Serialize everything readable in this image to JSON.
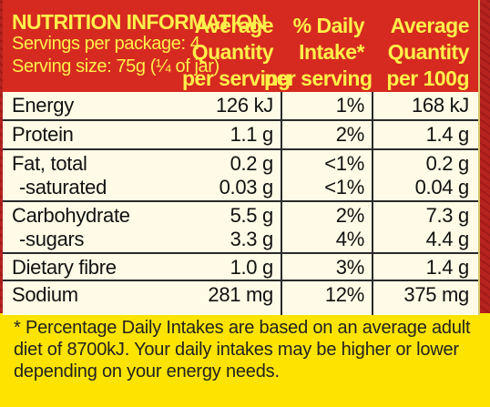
{
  "header": {
    "title": "NUTRITION INFORMATION",
    "servings": "Servings per package: 4",
    "serving_size": "Serving size: 75g (¼ of jar)",
    "col1": [
      "Average",
      "Quantity",
      "per serving"
    ],
    "col2": [
      "% Daily",
      "Intake*",
      "per serving"
    ],
    "col3": [
      "Average",
      "Quantity",
      "per 100g"
    ]
  },
  "rows": [
    {
      "lines": [
        {
          "name": "Energy",
          "per_serving": "126 kJ",
          "daily_intake": "1%",
          "per_100g": "168 kJ"
        }
      ]
    },
    {
      "lines": [
        {
          "name": "Protein",
          "per_serving": "1.1 g",
          "daily_intake": "2%",
          "per_100g": "1.4 g"
        }
      ]
    },
    {
      "lines": [
        {
          "name": "Fat, total",
          "per_serving": "0.2 g",
          "daily_intake": "<1%",
          "per_100g": "0.2 g"
        },
        {
          "name": "-saturated",
          "per_serving": "0.03 g",
          "daily_intake": "<1%",
          "per_100g": "0.04 g"
        }
      ]
    },
    {
      "lines": [
        {
          "name": "Carbohydrate",
          "per_serving": "5.5 g",
          "daily_intake": "2%",
          "per_100g": "7.3 g"
        },
        {
          "name": "-sugars",
          "per_serving": "3.3 g",
          "daily_intake": "4%",
          "per_100g": "4.4 g"
        }
      ]
    },
    {
      "lines": [
        {
          "name": "Dietary fibre",
          "per_serving": "1.0 g",
          "daily_intake": "3%",
          "per_100g": "1.4 g"
        }
      ]
    },
    {
      "lines": [
        {
          "name": "Sodium",
          "per_serving": "281 mg",
          "daily_intake": "12%",
          "per_100g": "375 mg"
        }
      ]
    }
  ],
  "footer": [
    "* Percentage Daily Intakes are based on an average adult",
    "diet of 8700kJ. Your daily intakes may be higher or lower",
    "depending on your energy needs."
  ],
  "colors": {
    "header_bg": "#d62a20",
    "header_text": "#fff04a",
    "label_bg": "#fde400",
    "table_bg": "#fffbe6"
  }
}
